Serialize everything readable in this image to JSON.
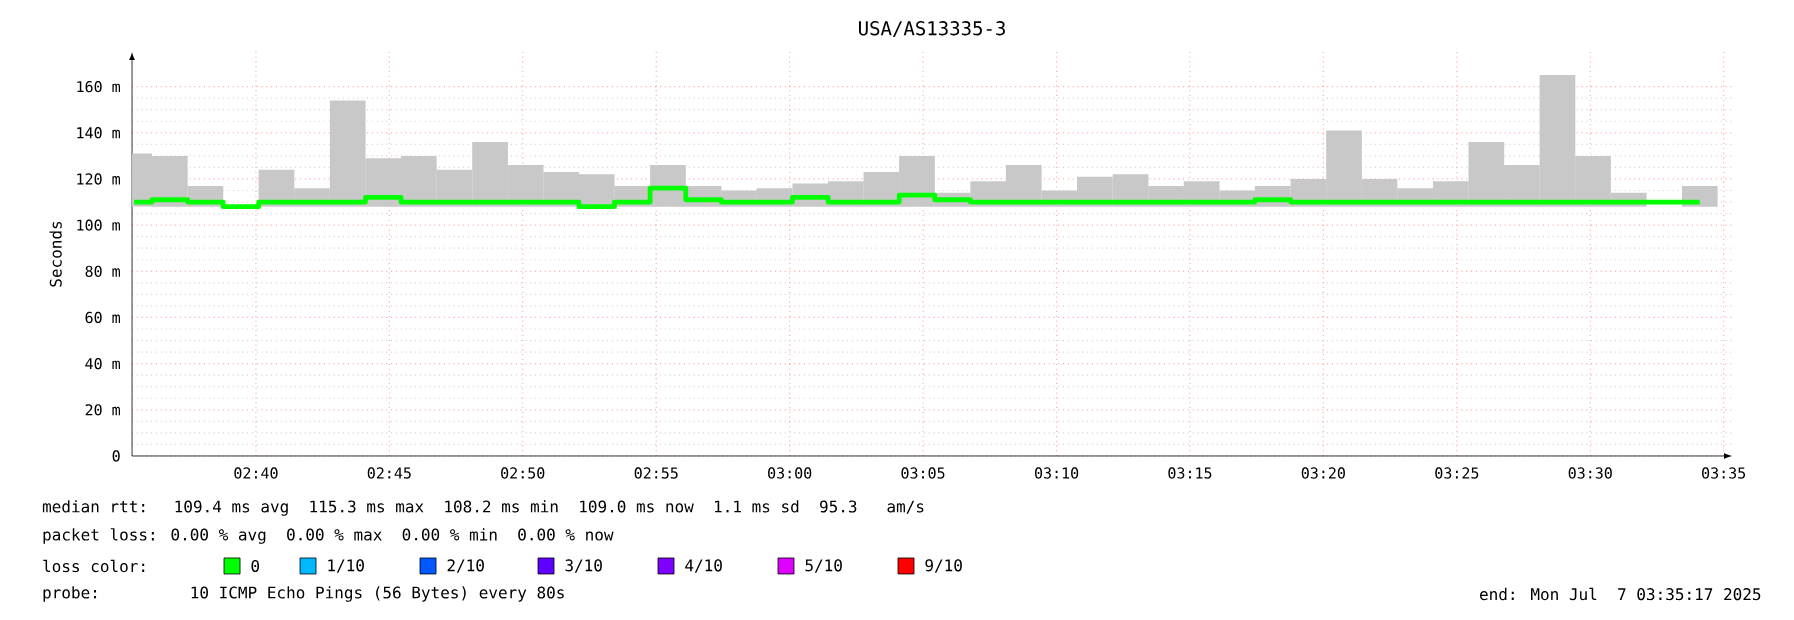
{
  "chart_data": {
    "type": "bar",
    "title": "USA/AS13335-3",
    "ylabel": "Seconds",
    "x": [
      2.5906,
      2.6129,
      2.6351,
      2.6573,
      2.6795,
      2.7017,
      2.724,
      2.7462,
      2.7684,
      2.7906,
      2.8129,
      2.8351,
      2.8573,
      2.8795,
      2.9017,
      2.924,
      2.9462,
      2.9684,
      2.9906,
      3.0129,
      3.0351,
      3.0573,
      3.0795,
      3.1017,
      3.124,
      3.1462,
      3.1684,
      3.1906,
      3.2129,
      3.2351,
      3.2573,
      3.2795,
      3.3017,
      3.324,
      3.3462,
      3.3684,
      3.3906,
      3.4129,
      3.4351,
      3.4573,
      3.4795,
      3.5017,
      3.524,
      3.5462,
      3.5684
    ],
    "series": [
      {
        "color": "#c8c8c8",
        "base": [
          108,
          108,
          108,
          null,
          108,
          108,
          108,
          108,
          108,
          108,
          108,
          108,
          108,
          108,
          108,
          108,
          108,
          108,
          108,
          108,
          108,
          108,
          108,
          108,
          108,
          108,
          108,
          108,
          108,
          108,
          108,
          108,
          108,
          108,
          108,
          108,
          108,
          108,
          108,
          108,
          108,
          108,
          108,
          null,
          108
        ],
        "values": [
          23,
          22,
          9,
          null,
          16,
          8,
          46,
          21,
          22,
          16,
          28,
          18,
          15,
          14,
          9,
          18,
          9,
          7,
          8,
          10,
          11,
          15,
          22,
          6,
          11,
          18,
          7,
          13,
          14,
          9,
          11,
          7,
          9,
          12,
          33,
          12,
          8,
          11,
          28,
          18,
          57,
          22,
          6,
          null,
          9
        ]
      },
      {
        "type": "step",
        "color": "#00ff00",
        "values": [
          110,
          111,
          110,
          108,
          110,
          110,
          110,
          112,
          110,
          110,
          110,
          110,
          110,
          108,
          110,
          116,
          111,
          110,
          110,
          112,
          110,
          110,
          113,
          111,
          110,
          110,
          110,
          110,
          110,
          110,
          110,
          110,
          111,
          110,
          110,
          110,
          110,
          110,
          110,
          110,
          110,
          110,
          110,
          110,
          110
        ]
      }
    ],
    "xlim": [
      2.5893,
      3.5885
    ],
    "xticks": [
      {
        "value": 2.6667,
        "label": "02:40"
      },
      {
        "value": 2.75,
        "label": "02:45"
      },
      {
        "value": 2.8333,
        "label": "02:50"
      },
      {
        "value": 2.9167,
        "label": "02:55"
      },
      {
        "value": 3.0,
        "label": "03:00"
      },
      {
        "value": 3.0833,
        "label": "03:05"
      },
      {
        "value": 3.1667,
        "label": "03:10"
      },
      {
        "value": 3.25,
        "label": "03:15"
      },
      {
        "value": 3.3333,
        "label": "03:20"
      },
      {
        "value": 3.4167,
        "label": "03:25"
      },
      {
        "value": 3.5,
        "label": "03:30"
      },
      {
        "value": 3.5833,
        "label": "03:35"
      }
    ],
    "ylim": [
      0,
      175
    ],
    "yticks": [
      0,
      {
        "value": 20,
        "label": "20 m"
      },
      {
        "value": 40,
        "label": "40 m"
      },
      {
        "value": 60,
        "label": "60 m"
      },
      {
        "value": 80,
        "label": "80 m"
      },
      {
        "value": 100,
        "label": "100 m"
      },
      {
        "value": 120,
        "label": "120 m"
      },
      {
        "value": 140,
        "label": "140 m"
      },
      {
        "value": 160,
        "label": "160 m"
      }
    ],
    "grid": true,
    "line_style": "solid",
    "annotations": [
      "median rtt:  109.4 ms avg  115.3 ms max  108.2 ms min  109.0 ms now  1.1 ms sd  95.3   am/s",
      "packet loss: 0.00 % avg  0.00 % max  0.00 % min  0.00 % now",
      "loss color:",
      "0",
      "1/10",
      "2/10",
      "3/10",
      "4/10",
      "5/10",
      "9/10",
      "probe:       10 ICMP Echo Pings (56 Bytes) every 80s",
      "end: Mon Jul  7 03:35:17 2025"
    ]
  }
}
